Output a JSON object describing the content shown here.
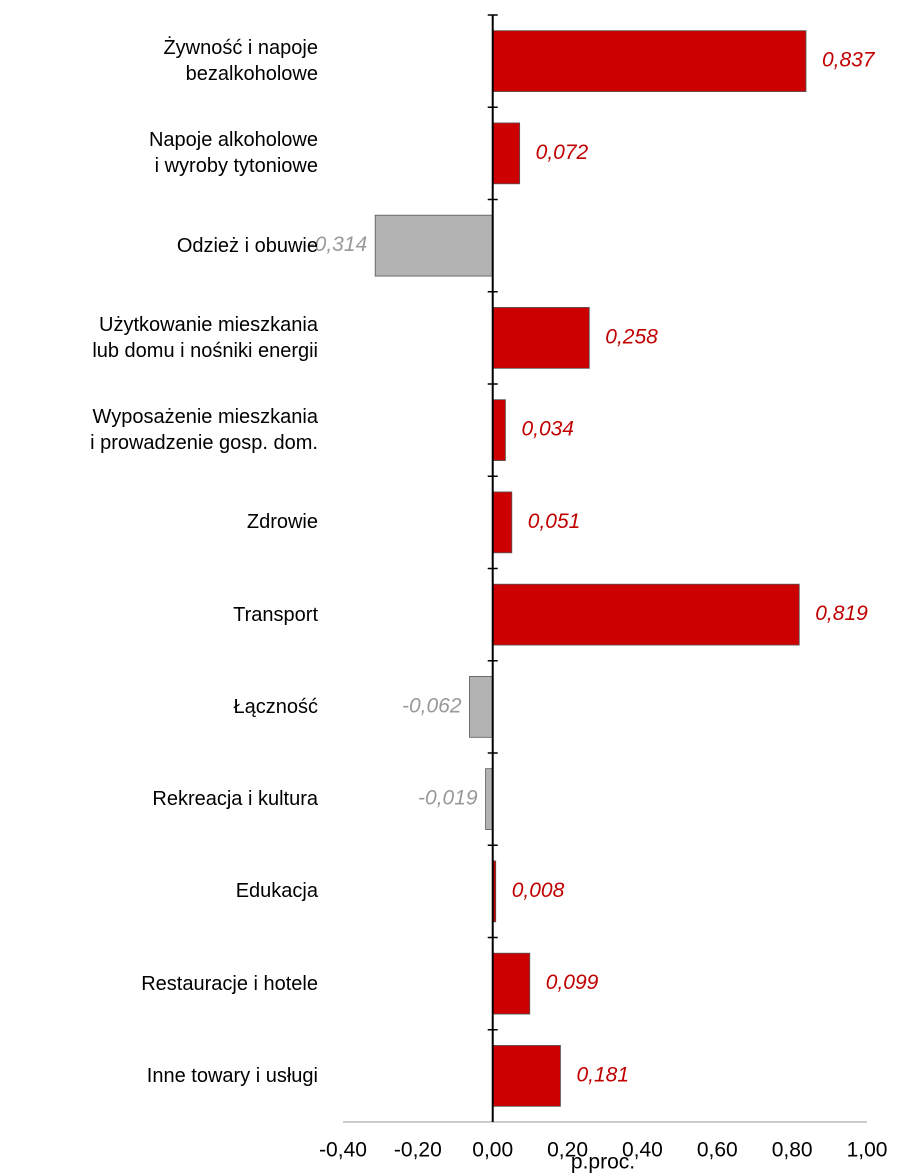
{
  "chart_data": {
    "type": "bar",
    "orientation": "horizontal",
    "categories": [
      "Żywność i napoje\nbezalkoholowe",
      "Napoje alkoholowe\ni wyroby tytoniowe",
      "Odzież i obuwie",
      "Użytkowanie mieszkania\nlub domu i nośniki energii",
      "Wyposażenie mieszkania\ni prowadzenie gosp. dom.",
      "Zdrowie",
      "Transport",
      "Łączność",
      "Rekreacja i kultura",
      "Edukacja",
      "Restauracje i hotele",
      "Inne towary i usługi"
    ],
    "values": [
      0.837,
      0.072,
      -0.314,
      0.258,
      0.034,
      0.051,
      0.819,
      -0.062,
      -0.019,
      0.008,
      0.099,
      0.181
    ],
    "value_labels": [
      "0,837",
      "0,072",
      "-0,314",
      "0,258",
      "0,034",
      "0,051",
      "0,819",
      "-0,062",
      "-0,019",
      "0,008",
      "0,099",
      "0,181"
    ],
    "color_positive": "#cc0000",
    "color_negative": "#b3b3b3",
    "label_color_positive": "#c00000",
    "label_color_negative": "#999999",
    "xlim": [
      -0.4,
      1.0
    ],
    "xticks": [
      {
        "value": -0.4,
        "label": "-0,40"
      },
      {
        "value": -0.2,
        "label": "-0,20"
      },
      {
        "value": 0,
        "label": "0,00"
      },
      {
        "value": 0.2,
        "label": "0,20"
      },
      {
        "value": 0.4,
        "label": "0,40"
      },
      {
        "value": 0.6,
        "label": "0,60"
      },
      {
        "value": 0.8,
        "label": "0,80"
      },
      {
        "value": 1.0,
        "label": "1,00"
      }
    ],
    "xlabel": "p.proc.",
    "grid": false
  }
}
